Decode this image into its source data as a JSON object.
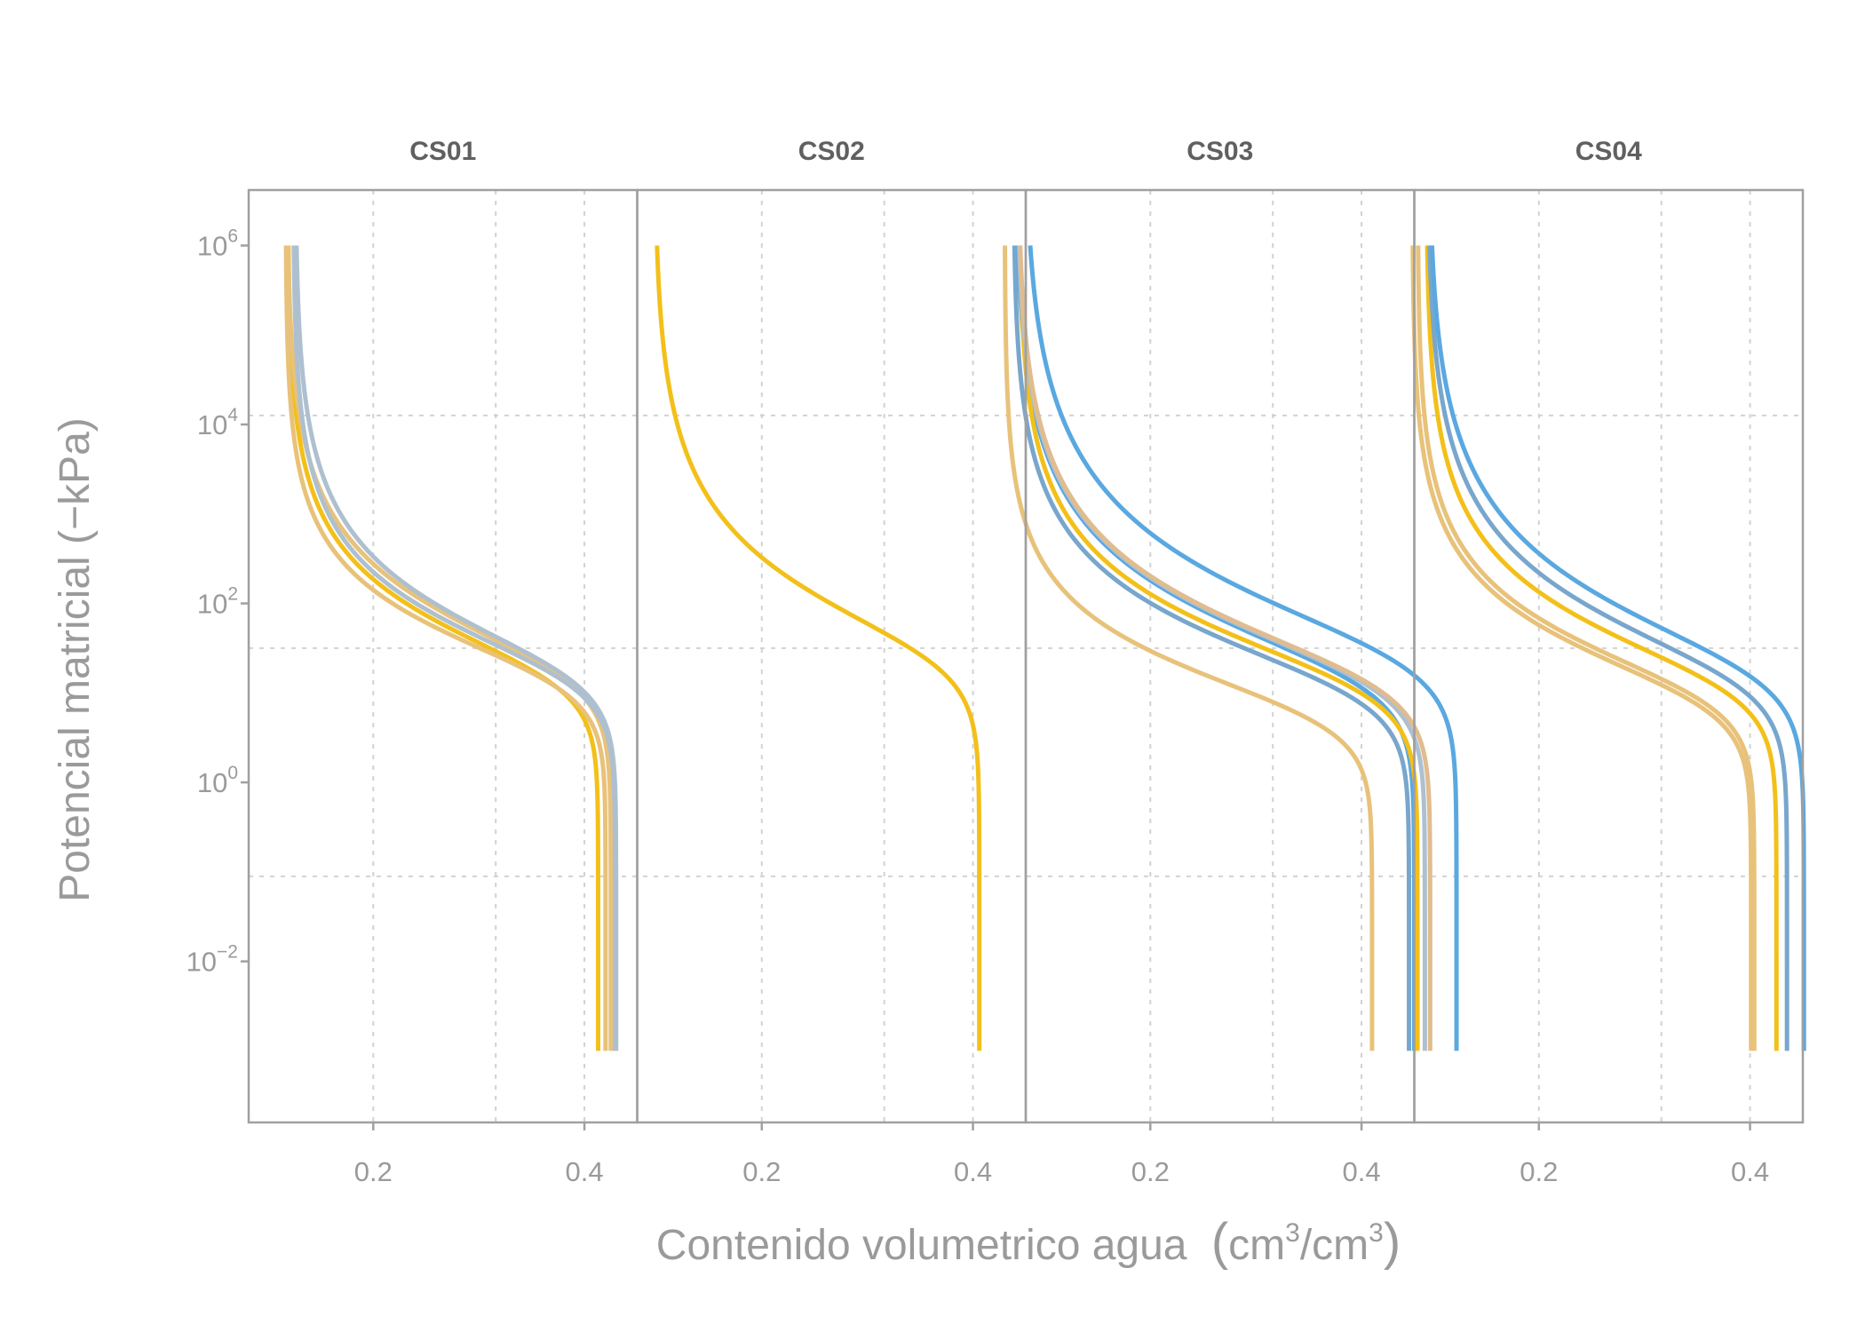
{
  "chart_data": {
    "type": "line",
    "xlabel": "Contenido volumetrico agua (cm3/cm3)",
    "xlabel_parts": {
      "main": "Contenido volumetrico agua",
      "open": "(",
      "unit1": "cm",
      "sup1": "3",
      "slash": "/cm",
      "sup2": "3",
      "close": ")"
    },
    "ylabel": "Potencial matricial (−kPa)",
    "x_ticks": [
      {
        "value": 0.2,
        "label": "0.2"
      },
      {
        "value": 0.4,
        "label": "0.4"
      }
    ],
    "x_minor_grid": [
      0.316
    ],
    "xlim": [
      0.082,
      0.45
    ],
    "y_scale": "log",
    "ylim_log10": [
      -3.8,
      6.62
    ],
    "y_ticks": [
      {
        "log10": 6,
        "base": "10",
        "exp": "6"
      },
      {
        "log10": 4,
        "base": "10",
        "exp": "4"
      },
      {
        "log10": 2,
        "base": "10",
        "exp": "2"
      },
      {
        "log10": 0,
        "base": "10",
        "exp": "0"
      },
      {
        "log10": -2,
        "base": "10",
        "exp": "−2"
      }
    ],
    "y_grid_log10": [
      4.1,
      1.5,
      -1.05
    ],
    "y_range_log10": [
      -3,
      6
    ],
    "grid": true,
    "model": "van Genuchten: theta = theta_r + (theta_s - theta_r) / (1 + (alpha*h)^n)^(1 - 1/n)",
    "colors": {
      "gold": "#F3C01A",
      "sand": "#E8C27A",
      "tan": "#E0BC8F",
      "blue": "#5AA8E0",
      "steel": "#78A6CC",
      "grey": "#AEC0D0"
    },
    "panels": [
      {
        "title": "CS01",
        "series": [
          {
            "color": "gold",
            "theta_r": 0.119,
            "theta_s": 0.413,
            "alpha": 0.055,
            "n": 1.55
          },
          {
            "color": "sand",
            "theta_r": 0.117,
            "theta_s": 0.42,
            "alpha": 0.06,
            "n": 1.6
          },
          {
            "color": "sand",
            "theta_r": 0.118,
            "theta_s": 0.425,
            "alpha": 0.05,
            "n": 1.5
          },
          {
            "color": "grey",
            "theta_r": 0.124,
            "theta_s": 0.429,
            "alpha": 0.055,
            "n": 1.55
          },
          {
            "color": "grey",
            "theta_r": 0.126,
            "theta_s": 0.43,
            "alpha": 0.05,
            "n": 1.5
          }
        ]
      },
      {
        "title": "CS02",
        "series": [
          {
            "color": "gold",
            "theta_r": 0.098,
            "theta_s": 0.406,
            "alpha": 0.035,
            "n": 1.45
          }
        ]
      },
      {
        "title": "CS03",
        "series": [
          {
            "color": "sand",
            "theta_r": 0.062,
            "theta_s": 0.41,
            "alpha": 0.15,
            "n": 1.6
          },
          {
            "color": "steel",
            "theta_r": 0.07,
            "theta_s": 0.445,
            "alpha": 0.08,
            "n": 1.5
          },
          {
            "color": "blue",
            "theta_r": 0.072,
            "theta_s": 0.45,
            "alpha": 0.06,
            "n": 1.45
          },
          {
            "color": "gold",
            "theta_r": 0.075,
            "theta_s": 0.453,
            "alpha": 0.07,
            "n": 1.5
          },
          {
            "color": "grey",
            "theta_r": 0.073,
            "theta_s": 0.46,
            "alpha": 0.06,
            "n": 1.45
          },
          {
            "color": "tan",
            "theta_r": 0.074,
            "theta_s": 0.465,
            "alpha": 0.06,
            "n": 1.45
          },
          {
            "color": "blue",
            "theta_r": 0.08,
            "theta_s": 0.49,
            "alpha": 0.035,
            "n": 1.4
          }
        ]
      },
      {
        "title": "CS04",
        "series": [
          {
            "color": "sand",
            "theta_r": 0.08,
            "theta_s": 0.401,
            "alpha": 0.1,
            "n": 1.55
          },
          {
            "color": "sand",
            "theta_r": 0.085,
            "theta_s": 0.404,
            "alpha": 0.09,
            "n": 1.55
          },
          {
            "color": "gold",
            "theta_r": 0.093,
            "theta_s": 0.425,
            "alpha": 0.07,
            "n": 1.5
          },
          {
            "color": "steel",
            "theta_r": 0.094,
            "theta_s": 0.435,
            "alpha": 0.06,
            "n": 1.45
          },
          {
            "color": "blue",
            "theta_r": 0.095,
            "theta_s": 0.451,
            "alpha": 0.05,
            "n": 1.42
          }
        ]
      }
    ]
  }
}
